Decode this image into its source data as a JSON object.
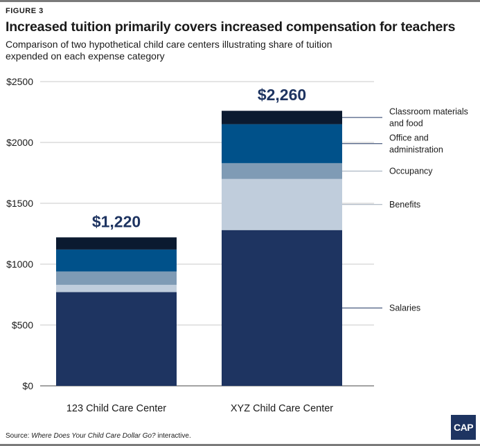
{
  "figure_label": "FIGURE 3",
  "title": "Increased tuition primarily covers increased compensation for teachers",
  "subtitle": "Comparison of two hypothetical child care centers illustrating share of tuition expended on each expense category",
  "source": {
    "prefix": "Source: ",
    "work": "Where Does Your Child Care Dollar Go?",
    "suffix": " interactive."
  },
  "logo_text": "CAP",
  "colors": {
    "Salaries": "#1e3461",
    "Benefits": "#c0cddc",
    "Occupancy": "#7f9bb5",
    "Office and administration": "#00518a",
    "Classroom materials and food": "#0b1a30"
  },
  "chart_data": {
    "type": "bar",
    "stacked": true,
    "categories": [
      "123 Child Care Center",
      "XYZ Child Care Center"
    ],
    "ylim": [
      0,
      2500
    ],
    "yticks": [
      0,
      500,
      1000,
      1500,
      2000,
      2500
    ],
    "ytick_labels": [
      "$0",
      "$500",
      "$1000",
      "$1500",
      "$2000",
      "$2500"
    ],
    "grid": true,
    "totals": [
      "$1,220",
      "$2,260"
    ],
    "series": [
      {
        "name": "Salaries",
        "values": [
          770,
          1280
        ]
      },
      {
        "name": "Benefits",
        "values": [
          60,
          420
        ]
      },
      {
        "name": "Occupancy",
        "values": [
          110,
          130
        ]
      },
      {
        "name": "Office and administration",
        "values": [
          180,
          320
        ]
      },
      {
        "name": "Classroom materials and food",
        "values": [
          100,
          110
        ]
      }
    ],
    "annotations": [
      {
        "series": "Classroom materials and food",
        "lines": [
          "Classroom materials",
          "and food"
        ]
      },
      {
        "series": "Office and administration",
        "lines": [
          "Office and",
          "administration"
        ]
      },
      {
        "series": "Occupancy",
        "lines": [
          "Occupancy"
        ]
      },
      {
        "series": "Benefits",
        "lines": [
          "Benefits"
        ]
      },
      {
        "series": "Salaries",
        "lines": [
          "Salaries"
        ]
      }
    ]
  }
}
